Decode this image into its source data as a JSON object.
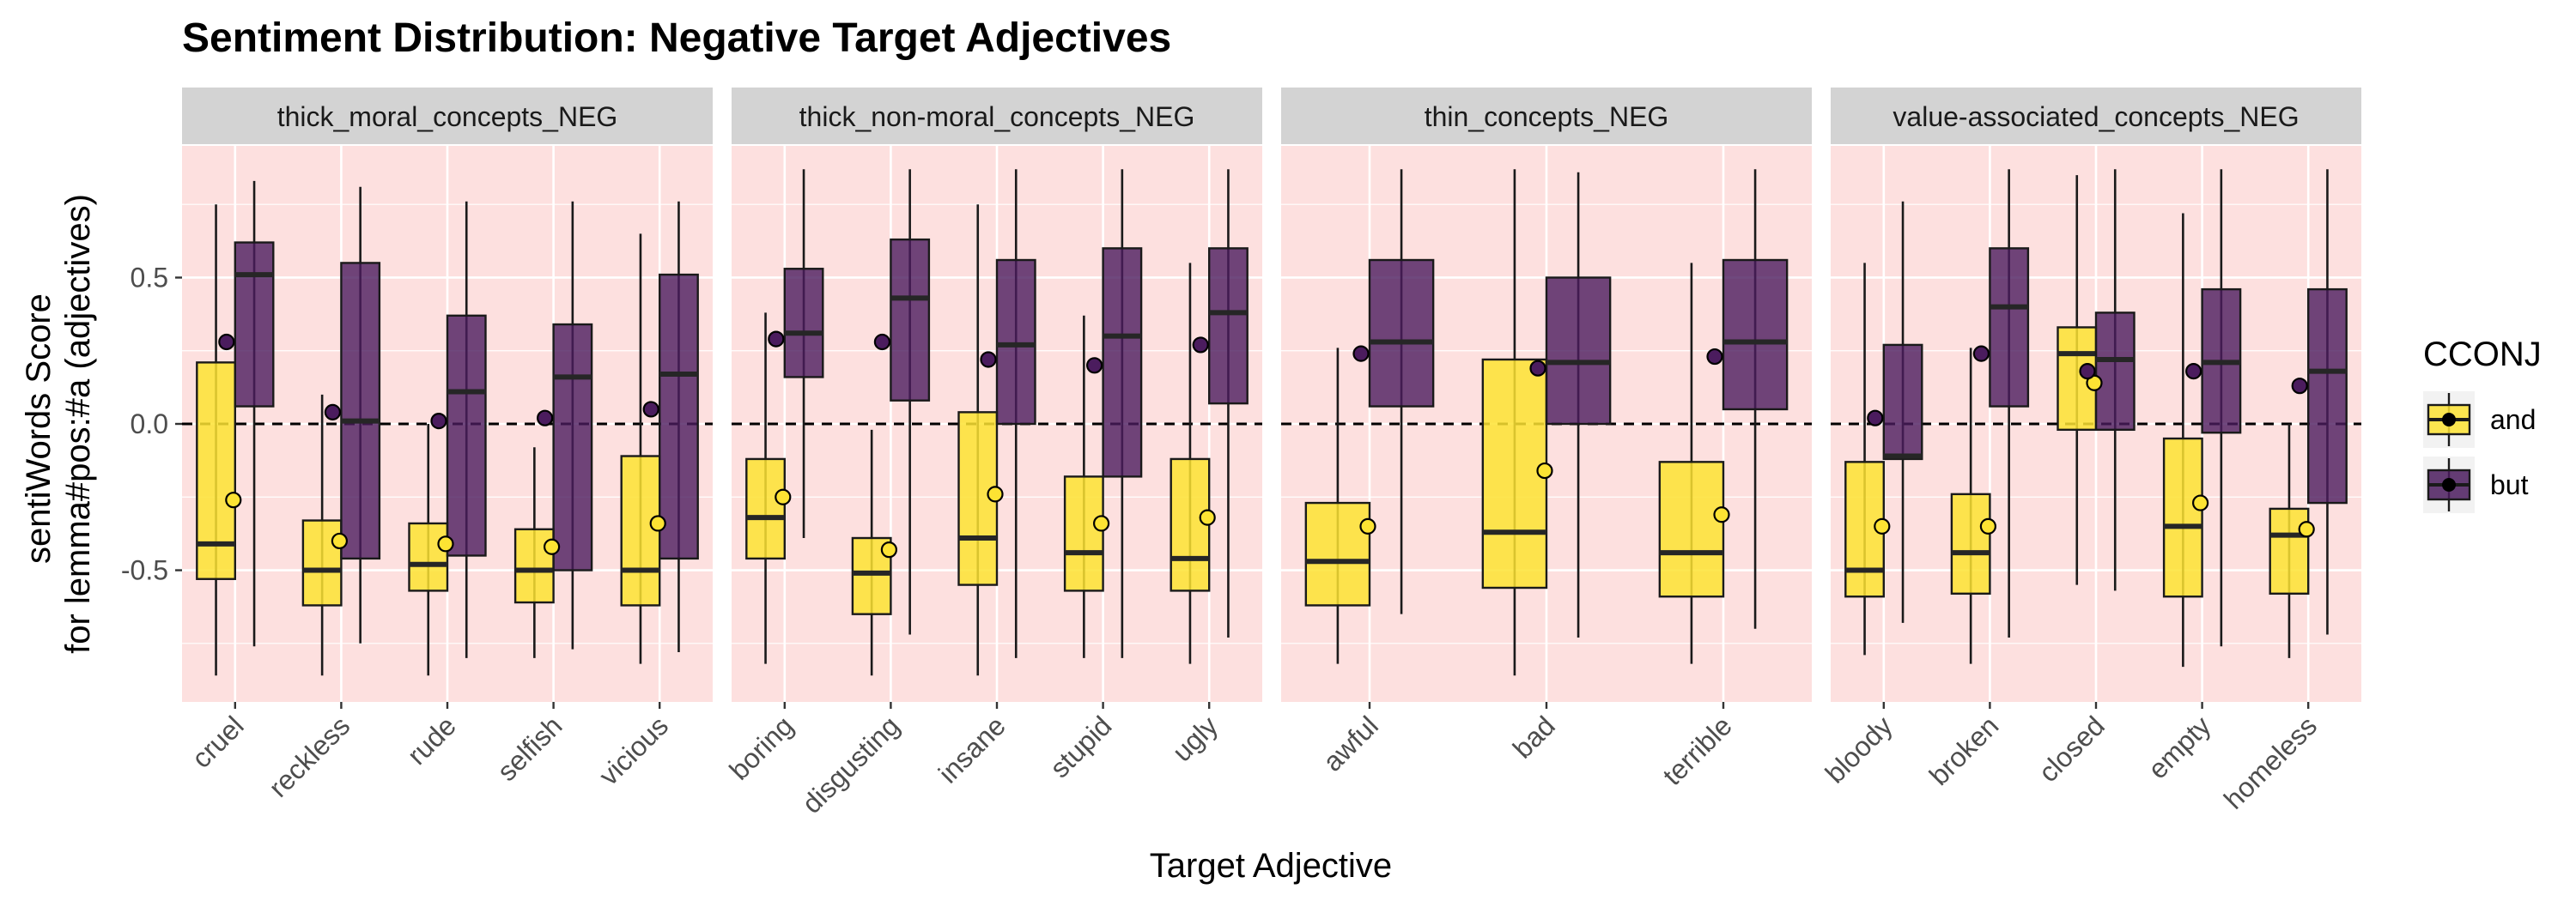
{
  "chart_data": {
    "type": "box",
    "title": "Sentiment Distribution: Negative Target Adjectives",
    "xlabel": "Target Adjective",
    "ylabel_lines": [
      "sentiWords Score",
      "for lemma#pos:#a (adjectives)"
    ],
    "ylim": [
      -0.95,
      0.95
    ],
    "yticks": [
      -0.5,
      0.0,
      0.5
    ],
    "ytick_labels": [
      "-0.5",
      "0.0",
      "0.5"
    ],
    "reference_line": 0,
    "panel_background": "#FDE0DF",
    "strip_background": "#D3D3D3",
    "grid": true,
    "legend": {
      "title": "CCONJ",
      "position": "right",
      "items": [
        {
          "label": "and",
          "color": "#FDE333"
        },
        {
          "label": "but",
          "color": "#4B1C5E"
        }
      ]
    },
    "colors": {
      "and": "#FDE333",
      "but": "#4B1C5E"
    },
    "panels": [
      {
        "name": "thick_moral_concepts_NEG",
        "categories": [
          {
            "label": "cruel",
            "and": {
              "whisker_low": -0.86,
              "q1": -0.53,
              "median": -0.41,
              "q3": 0.21,
              "whisker_high": 0.75,
              "mean": -0.26
            },
            "but": {
              "whisker_low": -0.76,
              "q1": 0.06,
              "median": 0.51,
              "q3": 0.62,
              "whisker_high": 0.83,
              "mean": 0.28
            }
          },
          {
            "label": "reckless",
            "and": {
              "whisker_low": -0.86,
              "q1": -0.62,
              "median": -0.5,
              "q3": -0.33,
              "whisker_high": 0.1,
              "mean": -0.4
            },
            "but": {
              "whisker_low": -0.75,
              "q1": -0.46,
              "median": 0.01,
              "q3": 0.55,
              "whisker_high": 0.81,
              "mean": 0.04
            }
          },
          {
            "label": "rude",
            "and": {
              "whisker_low": -0.86,
              "q1": -0.57,
              "median": -0.48,
              "q3": -0.34,
              "whisker_high": 0.0,
              "mean": -0.41
            },
            "but": {
              "whisker_low": -0.8,
              "q1": -0.45,
              "median": 0.11,
              "q3": 0.37,
              "whisker_high": 0.76,
              "mean": 0.01
            }
          },
          {
            "label": "selfish",
            "and": {
              "whisker_low": -0.8,
              "q1": -0.61,
              "median": -0.5,
              "q3": -0.36,
              "whisker_high": -0.08,
              "mean": -0.42
            },
            "but": {
              "whisker_low": -0.77,
              "q1": -0.5,
              "median": 0.16,
              "q3": 0.34,
              "whisker_high": 0.76,
              "mean": 0.02
            }
          },
          {
            "label": "vicious",
            "and": {
              "whisker_low": -0.82,
              "q1": -0.62,
              "median": -0.5,
              "q3": -0.11,
              "whisker_high": 0.65,
              "mean": -0.34
            },
            "but": {
              "whisker_low": -0.78,
              "q1": -0.46,
              "median": 0.17,
              "q3": 0.51,
              "whisker_high": 0.76,
              "mean": 0.05
            }
          }
        ]
      },
      {
        "name": "thick_non-moral_concepts_NEG",
        "categories": [
          {
            "label": "boring",
            "and": {
              "whisker_low": -0.82,
              "q1": -0.46,
              "median": -0.32,
              "q3": -0.12,
              "whisker_high": 0.38,
              "mean": -0.25
            },
            "but": {
              "whisker_low": -0.39,
              "q1": 0.16,
              "median": 0.31,
              "q3": 0.53,
              "whisker_high": 0.87,
              "mean": 0.29
            }
          },
          {
            "label": "disgusting",
            "and": {
              "whisker_low": -0.86,
              "q1": -0.65,
              "median": -0.51,
              "q3": -0.39,
              "whisker_high": -0.02,
              "mean": -0.43
            },
            "but": {
              "whisker_low": -0.72,
              "q1": 0.08,
              "median": 0.43,
              "q3": 0.63,
              "whisker_high": 0.87,
              "mean": 0.28
            }
          },
          {
            "label": "insane",
            "and": {
              "whisker_low": -0.86,
              "q1": -0.55,
              "median": -0.39,
              "q3": 0.04,
              "whisker_high": 0.75,
              "mean": -0.24
            },
            "but": {
              "whisker_low": -0.8,
              "q1": 0.0,
              "median": 0.27,
              "q3": 0.56,
              "whisker_high": 0.87,
              "mean": 0.22
            }
          },
          {
            "label": "stupid",
            "and": {
              "whisker_low": -0.8,
              "q1": -0.57,
              "median": -0.44,
              "q3": -0.18,
              "whisker_high": 0.37,
              "mean": -0.34
            },
            "but": {
              "whisker_low": -0.8,
              "q1": -0.18,
              "median": 0.3,
              "q3": 0.6,
              "whisker_high": 0.87,
              "mean": 0.2
            }
          },
          {
            "label": "ugly",
            "and": {
              "whisker_low": -0.82,
              "q1": -0.57,
              "median": -0.46,
              "q3": -0.12,
              "whisker_high": 0.55,
              "mean": -0.32
            },
            "but": {
              "whisker_low": -0.73,
              "q1": 0.07,
              "median": 0.38,
              "q3": 0.6,
              "whisker_high": 0.87,
              "mean": 0.27
            }
          }
        ]
      },
      {
        "name": "thin_concepts_NEG",
        "categories": [
          {
            "label": "awful",
            "and": {
              "whisker_low": -0.82,
              "q1": -0.62,
              "median": -0.47,
              "q3": -0.27,
              "whisker_high": 0.26,
              "mean": -0.35
            },
            "but": {
              "whisker_low": -0.65,
              "q1": 0.06,
              "median": 0.28,
              "q3": 0.56,
              "whisker_high": 0.87,
              "mean": 0.24
            }
          },
          {
            "label": "bad",
            "and": {
              "whisker_low": -0.86,
              "q1": -0.56,
              "median": -0.37,
              "q3": 0.22,
              "whisker_high": 0.87,
              "mean": -0.16
            },
            "but": {
              "whisker_low": -0.73,
              "q1": 0.0,
              "median": 0.21,
              "q3": 0.5,
              "whisker_high": 0.86,
              "mean": 0.19
            }
          },
          {
            "label": "terrible",
            "and": {
              "whisker_low": -0.82,
              "q1": -0.59,
              "median": -0.44,
              "q3": -0.13,
              "whisker_high": 0.55,
              "mean": -0.31
            },
            "but": {
              "whisker_low": -0.7,
              "q1": 0.05,
              "median": 0.28,
              "q3": 0.56,
              "whisker_high": 0.87,
              "mean": 0.23
            }
          }
        ]
      },
      {
        "name": "value-associated_concepts_NEG",
        "categories": [
          {
            "label": "bloody",
            "and": {
              "whisker_low": -0.79,
              "q1": -0.59,
              "median": -0.5,
              "q3": -0.13,
              "whisker_high": 0.55,
              "mean": -0.35
            },
            "but": {
              "whisker_low": -0.68,
              "q1": -0.12,
              "median": -0.11,
              "q3": 0.27,
              "whisker_high": 0.76,
              "mean": 0.02
            }
          },
          {
            "label": "broken",
            "and": {
              "whisker_low": -0.82,
              "q1": -0.58,
              "median": -0.44,
              "q3": -0.24,
              "whisker_high": 0.26,
              "mean": -0.35
            },
            "but": {
              "whisker_low": -0.73,
              "q1": 0.06,
              "median": 0.4,
              "q3": 0.6,
              "whisker_high": 0.87,
              "mean": 0.24
            }
          },
          {
            "label": "closed",
            "and": {
              "whisker_low": -0.55,
              "q1": -0.02,
              "median": 0.24,
              "q3": 0.33,
              "whisker_high": 0.85,
              "mean": 0.14
            },
            "but": {
              "whisker_low": -0.57,
              "q1": -0.02,
              "median": 0.22,
              "q3": 0.38,
              "whisker_high": 0.87,
              "mean": 0.18
            }
          },
          {
            "label": "empty",
            "and": {
              "whisker_low": -0.83,
              "q1": -0.59,
              "median": -0.35,
              "q3": -0.05,
              "whisker_high": 0.72,
              "mean": -0.27
            },
            "but": {
              "whisker_low": -0.76,
              "q1": -0.03,
              "median": 0.21,
              "q3": 0.46,
              "whisker_high": 0.87,
              "mean": 0.18
            }
          },
          {
            "label": "homeless",
            "and": {
              "whisker_low": -0.8,
              "q1": -0.58,
              "median": -0.38,
              "q3": -0.29,
              "whisker_high": 0.0,
              "mean": -0.36
            },
            "but": {
              "whisker_low": -0.72,
              "q1": -0.27,
              "median": 0.18,
              "q3": 0.46,
              "whisker_high": 0.87,
              "mean": 0.13
            }
          }
        ]
      }
    ]
  }
}
